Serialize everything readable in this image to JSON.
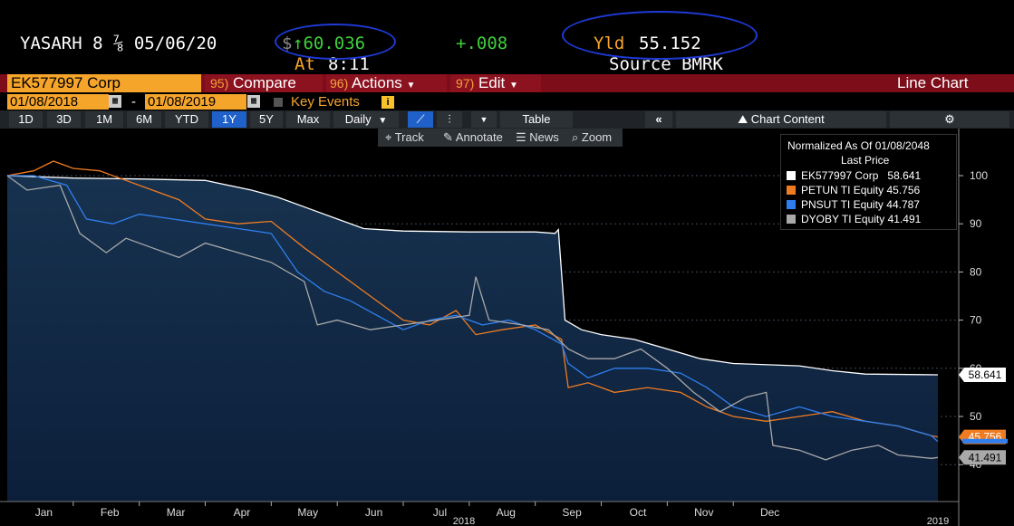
{
  "header": {
    "ticker": "YASARH 8 ⅞ 05/06/20",
    "price_prefix": "$",
    "price": "↑60.036",
    "change": "+.008",
    "yld_label": "Yld",
    "yld_value": "55.152",
    "at_label": "At",
    "at_time": "8:11",
    "source": "Source BMRK"
  },
  "function_bar": {
    "security": "EK577997 Corp",
    "compare_num": "95)",
    "compare": "Compare",
    "actions_num": "96)",
    "actions": "Actions",
    "edit_num": "97)",
    "edit": "Edit",
    "view": "Line Chart"
  },
  "date_row": {
    "start": "01/08/2018",
    "dash": "-",
    "end": "01/08/2019",
    "key_events": "Key Events"
  },
  "toolbar": {
    "periods": [
      "1D",
      "3D",
      "1M",
      "6M",
      "YTD",
      "1Y",
      "5Y",
      "Max"
    ],
    "active_period": "1Y",
    "frequency": "Daily",
    "table": "Table",
    "chart_content": "Chart Content"
  },
  "subtoolbar": {
    "track": "Track",
    "annotate": "Annotate",
    "news": "News",
    "zoom": "Zoom"
  },
  "legend": {
    "title": "Normalized As Of 01/08/2048",
    "subtitle": "Last Price",
    "items": [
      {
        "name": "EK577997 Corp",
        "value": "58.641",
        "color": "#ffffff"
      },
      {
        "name": "PETUN TI Equity",
        "value": "45.756",
        "color": "#f07c22"
      },
      {
        "name": "PNSUT TI Equity",
        "value": "44.787",
        "color": "#2f7fef"
      },
      {
        "name": "DYOBY TI Equity",
        "value": "41.491",
        "color": "#a9a9a9"
      }
    ]
  },
  "colors": {
    "accent_orange": "#f6a52b",
    "bar_red": "#7c0d19",
    "annotation_blue": "#1f3ad6",
    "plot_top": "#17324f",
    "plot_bottom": "#0c1f3a"
  },
  "chart_data": {
    "type": "line",
    "x_months": [
      "Jan",
      "Feb",
      "Mar",
      "Apr",
      "May",
      "Jun",
      "Jul",
      "Aug",
      "Sep",
      "Oct",
      "Nov",
      "Dec"
    ],
    "year_label": "2018",
    "year_label_right": "2019",
    "ylim": [
      30,
      110
    ],
    "y_ticks": [
      40,
      50,
      60,
      70,
      80,
      90,
      100
    ],
    "y_axis_side": "right",
    "legend_placement": "top-right",
    "price_tags": [
      {
        "value": 58.641,
        "text": "58.641",
        "color": "#ffffff"
      },
      {
        "value": 45.756,
        "text": "45.756",
        "color": "#f07c22"
      },
      {
        "value": 44.787,
        "text": "",
        "color": "#2f7fef"
      },
      {
        "value": 41.491,
        "text": "41.491",
        "color": "#a9a9a9"
      }
    ],
    "series": [
      {
        "name": "EK577997 Corp",
        "color": "#ffffff",
        "fill": true,
        "points": [
          [
            0,
            100
          ],
          [
            1.0,
            99.5
          ],
          [
            2.0,
            99.3
          ],
          [
            3.0,
            99
          ],
          [
            3.7,
            97
          ],
          [
            4.1,
            95.5
          ],
          [
            4.6,
            93
          ],
          [
            5.0,
            91
          ],
          [
            5.4,
            89
          ],
          [
            6.0,
            88.5
          ],
          [
            7.0,
            88.3
          ],
          [
            8.0,
            88.3
          ],
          [
            8.3,
            88
          ],
          [
            8.35,
            88.8
          ],
          [
            8.45,
            70
          ],
          [
            8.7,
            68
          ],
          [
            9.0,
            67
          ],
          [
            9.5,
            66
          ],
          [
            10.0,
            64
          ],
          [
            10.5,
            62
          ],
          [
            11.0,
            61
          ],
          [
            12.0,
            60.5
          ],
          [
            12.5,
            59.5
          ],
          [
            13.0,
            58.8
          ],
          [
            14.1,
            58.64
          ]
        ]
      },
      {
        "name": "PETUN TI Equity",
        "color": "#f07c22",
        "points": [
          [
            0,
            100
          ],
          [
            0.4,
            101
          ],
          [
            0.7,
            103
          ],
          [
            1.0,
            101.5
          ],
          [
            1.4,
            101
          ],
          [
            1.8,
            99
          ],
          [
            2.2,
            97
          ],
          [
            2.6,
            95
          ],
          [
            3.0,
            91
          ],
          [
            3.5,
            90
          ],
          [
            4.0,
            90.5
          ],
          [
            4.5,
            85
          ],
          [
            5.0,
            80
          ],
          [
            5.5,
            75
          ],
          [
            6.0,
            70
          ],
          [
            6.4,
            69
          ],
          [
            6.8,
            72
          ],
          [
            7.1,
            67
          ],
          [
            7.5,
            68
          ],
          [
            8.0,
            69
          ],
          [
            8.4,
            66
          ],
          [
            8.5,
            56
          ],
          [
            8.8,
            57
          ],
          [
            9.2,
            55
          ],
          [
            9.7,
            56
          ],
          [
            10.2,
            55
          ],
          [
            10.6,
            52
          ],
          [
            11.0,
            50
          ],
          [
            11.5,
            49
          ],
          [
            12.0,
            50
          ],
          [
            12.5,
            51
          ],
          [
            13.0,
            49
          ],
          [
            13.5,
            48
          ],
          [
            14.0,
            46
          ],
          [
            14.1,
            45.76
          ]
        ]
      },
      {
        "name": "PNSUT TI Equity",
        "color": "#2f7fef",
        "points": [
          [
            0,
            100
          ],
          [
            0.4,
            100
          ],
          [
            0.9,
            98
          ],
          [
            1.2,
            91
          ],
          [
            1.6,
            90
          ],
          [
            2.0,
            92
          ],
          [
            2.5,
            91
          ],
          [
            3.0,
            90
          ],
          [
            3.5,
            89
          ],
          [
            4.0,
            88
          ],
          [
            4.4,
            80
          ],
          [
            4.8,
            76
          ],
          [
            5.2,
            74
          ],
          [
            5.6,
            71
          ],
          [
            6.0,
            68
          ],
          [
            6.4,
            70
          ],
          [
            6.8,
            71
          ],
          [
            7.2,
            69
          ],
          [
            7.6,
            70
          ],
          [
            8.0,
            68
          ],
          [
            8.4,
            65
          ],
          [
            8.5,
            61
          ],
          [
            8.8,
            58
          ],
          [
            9.2,
            60
          ],
          [
            9.7,
            60
          ],
          [
            10.2,
            59
          ],
          [
            10.6,
            56
          ],
          [
            11.0,
            52
          ],
          [
            11.5,
            50
          ],
          [
            12.0,
            52
          ],
          [
            12.5,
            50
          ],
          [
            13.0,
            49
          ],
          [
            13.5,
            48
          ],
          [
            14.0,
            46
          ],
          [
            14.1,
            44.79
          ]
        ]
      },
      {
        "name": "DYOBY TI Equity",
        "color": "#a9a9a9",
        "points": [
          [
            0,
            100
          ],
          [
            0.3,
            97
          ],
          [
            0.8,
            98
          ],
          [
            1.1,
            88
          ],
          [
            1.5,
            84
          ],
          [
            1.8,
            87
          ],
          [
            2.2,
            85
          ],
          [
            2.6,
            83
          ],
          [
            3.0,
            86
          ],
          [
            3.5,
            84
          ],
          [
            4.0,
            82
          ],
          [
            4.5,
            78
          ],
          [
            4.7,
            69
          ],
          [
            5.0,
            70
          ],
          [
            5.5,
            68
          ],
          [
            6.0,
            69
          ],
          [
            6.5,
            70
          ],
          [
            7.0,
            71
          ],
          [
            7.1,
            79
          ],
          [
            7.3,
            70
          ],
          [
            7.8,
            69
          ],
          [
            8.2,
            68
          ],
          [
            8.5,
            64
          ],
          [
            8.8,
            62
          ],
          [
            9.2,
            62
          ],
          [
            9.6,
            64
          ],
          [
            10.0,
            60
          ],
          [
            10.4,
            55
          ],
          [
            10.8,
            51
          ],
          [
            11.2,
            54
          ],
          [
            11.5,
            55
          ],
          [
            11.6,
            44
          ],
          [
            12.0,
            43
          ],
          [
            12.4,
            41
          ],
          [
            12.8,
            43
          ],
          [
            13.2,
            44
          ],
          [
            13.5,
            42
          ],
          [
            14.0,
            41.3
          ],
          [
            14.1,
            41.49
          ]
        ]
      }
    ]
  }
}
